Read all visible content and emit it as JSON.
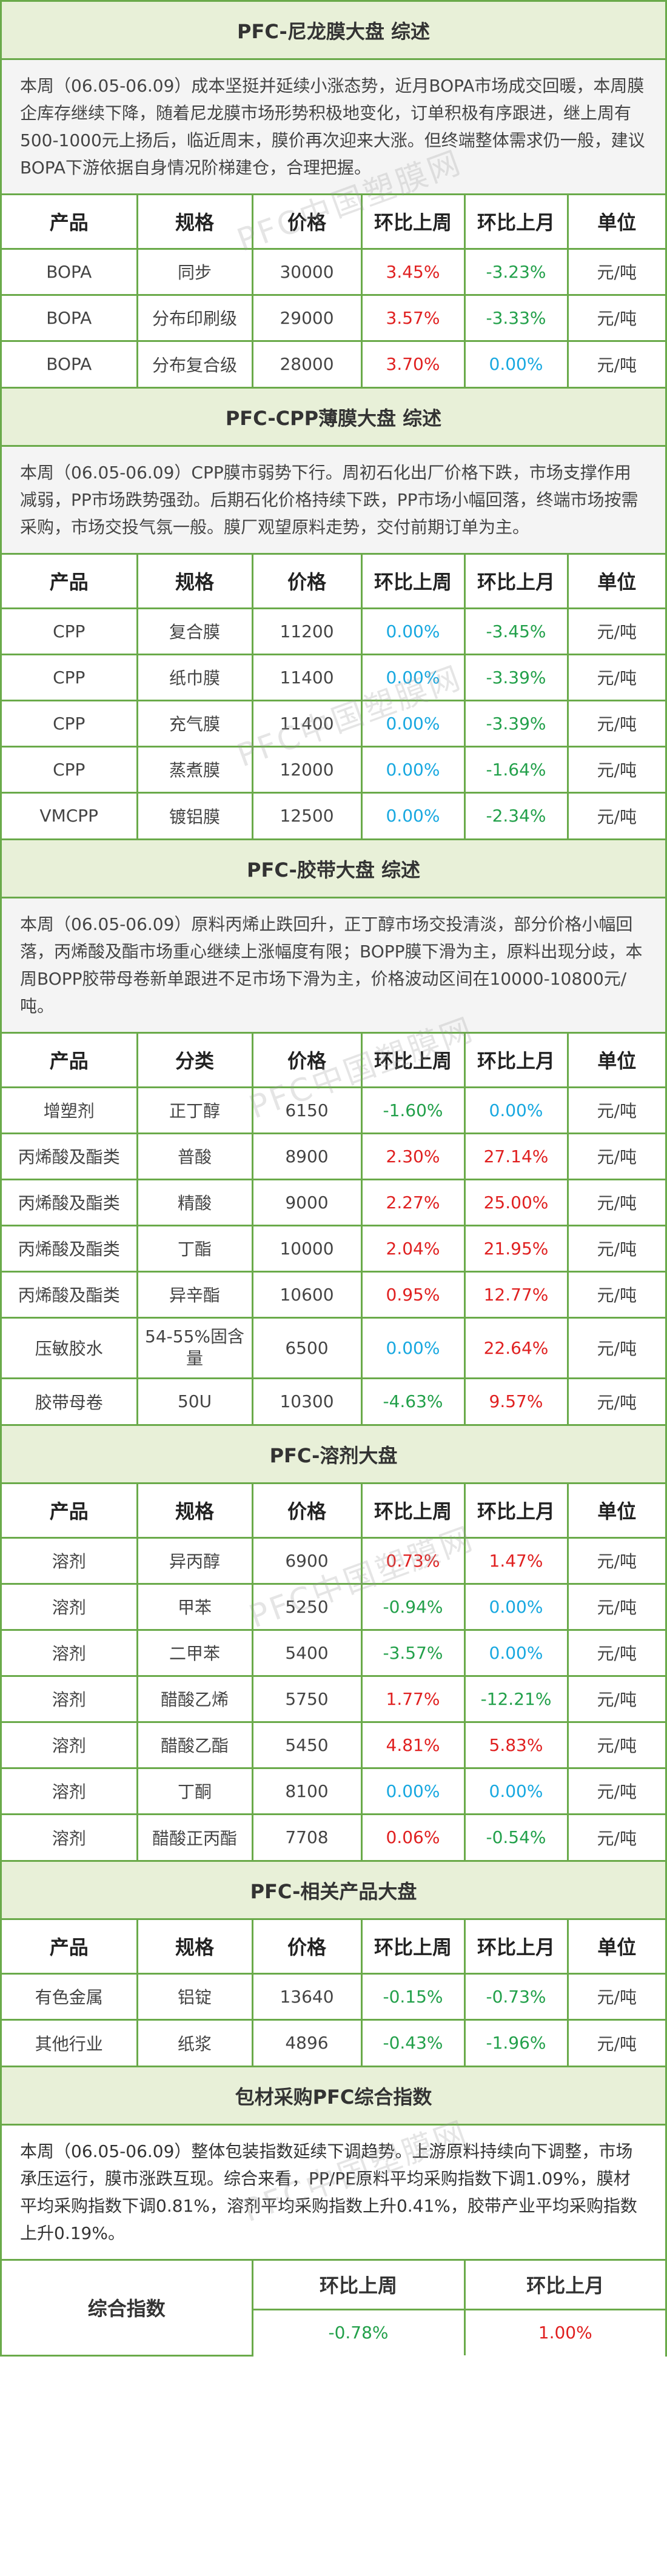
{
  "nylon": {
    "title": "PFC-尼龙膜大盘 综述",
    "summary": "本周（06.05-06.09）成本坚挺并延续小涨态势，近月BOPA市场成交回暖，本周膜企库存继续下降，随着尼龙膜市场形势积极地变化，订单积极有序跟进，继上周有500-1000元上扬后，临近周末，膜价再次迎来大涨。但终端整体需求仍一般，建议BOPA下游依据自身情况阶梯建仓，合理把握。",
    "headers": [
      "产品",
      "规格",
      "价格",
      "环比上周",
      "环比上月",
      "单位"
    ],
    "rows": [
      {
        "product": "BOPA",
        "spec": "同步",
        "price": "30000",
        "wow": "3.45%",
        "mom": "-3.23%",
        "unit": "元/吨",
        "wow_c": "red",
        "mom_c": "green"
      },
      {
        "product": "BOPA",
        "spec": "分布印刷级",
        "price": "29000",
        "wow": "3.57%",
        "mom": "-3.33%",
        "unit": "元/吨",
        "wow_c": "red",
        "mom_c": "green"
      },
      {
        "product": "BOPA",
        "spec": "分布复合级",
        "price": "28000",
        "wow": "3.70%",
        "mom": "0.00%",
        "unit": "元/吨",
        "wow_c": "red",
        "mom_c": "blue"
      }
    ]
  },
  "cpp": {
    "title": "PFC-CPP薄膜大盘 综述",
    "summary": "本周（06.05-06.09）CPP膜市弱势下行。周初石化出厂价格下跌，市场支撑作用减弱，PP市场跌势强劲。后期石化价格持续下跌，PP市场小幅回落，终端市场按需采购，市场交投气氛一般。膜厂观望原料走势，交付前期订单为主。",
    "headers": [
      "产品",
      "规格",
      "价格",
      "环比上周",
      "环比上月",
      "单位"
    ],
    "rows": [
      {
        "product": "CPP",
        "spec": "复合膜",
        "price": "11200",
        "wow": "0.00%",
        "mom": "-3.45%",
        "unit": "元/吨",
        "wow_c": "blue",
        "mom_c": "green"
      },
      {
        "product": "CPP",
        "spec": "纸巾膜",
        "price": "11400",
        "wow": "0.00%",
        "mom": "-3.39%",
        "unit": "元/吨",
        "wow_c": "blue",
        "mom_c": "green"
      },
      {
        "product": "CPP",
        "spec": "充气膜",
        "price": "11400",
        "wow": "0.00%",
        "mom": "-3.39%",
        "unit": "元/吨",
        "wow_c": "blue",
        "mom_c": "green"
      },
      {
        "product": "CPP",
        "spec": "蒸煮膜",
        "price": "12000",
        "wow": "0.00%",
        "mom": "-1.64%",
        "unit": "元/吨",
        "wow_c": "blue",
        "mom_c": "green"
      },
      {
        "product": "VMCPP",
        "spec": "镀铝膜",
        "price": "12500",
        "wow": "0.00%",
        "mom": "-2.34%",
        "unit": "元/吨",
        "wow_c": "blue",
        "mom_c": "green"
      }
    ]
  },
  "tape": {
    "title": "PFC-胶带大盘 综述",
    "summary": "本周（06.05-06.09）原料丙烯止跌回升，正丁醇市场交投清淡，部分价格小幅回落，丙烯酸及酯市场重心继续上涨幅度有限；BOPP膜下滑为主，原料出现分歧，本周BOPP胶带母卷新单跟进不足市场下滑为主，价格波动区间在10000-10800元/吨。",
    "headers": [
      "产品",
      "分类",
      "价格",
      "环比上周",
      "环比上月",
      "单位"
    ],
    "rows": [
      {
        "product": "增塑剂",
        "spec": "正丁醇",
        "price": "6150",
        "wow": "-1.60%",
        "mom": "0.00%",
        "unit": "元/吨",
        "wow_c": "green",
        "mom_c": "blue"
      },
      {
        "product": "丙烯酸及酯类",
        "spec": "普酸",
        "price": "8900",
        "wow": "2.30%",
        "mom": "27.14%",
        "unit": "元/吨",
        "wow_c": "red",
        "mom_c": "red"
      },
      {
        "product": "丙烯酸及酯类",
        "spec": "精酸",
        "price": "9000",
        "wow": "2.27%",
        "mom": "25.00%",
        "unit": "元/吨",
        "wow_c": "red",
        "mom_c": "red"
      },
      {
        "product": "丙烯酸及酯类",
        "spec": "丁酯",
        "price": "10000",
        "wow": "2.04%",
        "mom": "21.95%",
        "unit": "元/吨",
        "wow_c": "red",
        "mom_c": "red"
      },
      {
        "product": "丙烯酸及酯类",
        "spec": "异辛酯",
        "price": "10600",
        "wow": "0.95%",
        "mom": "12.77%",
        "unit": "元/吨",
        "wow_c": "red",
        "mom_c": "red"
      },
      {
        "product": "压敏胶水",
        "spec": "54-55%固含量",
        "price": "6500",
        "wow": "0.00%",
        "mom": "22.64%",
        "unit": "元/吨",
        "wow_c": "blue",
        "mom_c": "red",
        "tall": true
      },
      {
        "product": "胶带母卷",
        "spec": "50U",
        "price": "10300",
        "wow": "-4.63%",
        "mom": "9.57%",
        "unit": "元/吨",
        "wow_c": "green",
        "mom_c": "red"
      }
    ]
  },
  "solvent": {
    "title": "PFC-溶剂大盘",
    "headers": [
      "产品",
      "规格",
      "价格",
      "环比上周",
      "环比上月",
      "单位"
    ],
    "rows": [
      {
        "product": "溶剂",
        "spec": "异丙醇",
        "price": "6900",
        "wow": "0.73%",
        "mom": "1.47%",
        "unit": "元/吨",
        "wow_c": "red",
        "mom_c": "red"
      },
      {
        "product": "溶剂",
        "spec": "甲苯",
        "price": "5250",
        "wow": "-0.94%",
        "mom": "0.00%",
        "unit": "元/吨",
        "wow_c": "green",
        "mom_c": "blue"
      },
      {
        "product": "溶剂",
        "spec": "二甲苯",
        "price": "5400",
        "wow": "-3.57%",
        "mom": "0.00%",
        "unit": "元/吨",
        "wow_c": "green",
        "mom_c": "blue"
      },
      {
        "product": "溶剂",
        "spec": "醋酸乙烯",
        "price": "5750",
        "wow": "1.77%",
        "mom": "-12.21%",
        "unit": "元/吨",
        "wow_c": "red",
        "mom_c": "green"
      },
      {
        "product": "溶剂",
        "spec": "醋酸乙酯",
        "price": "5450",
        "wow": "4.81%",
        "mom": "5.83%",
        "unit": "元/吨",
        "wow_c": "red",
        "mom_c": "red"
      },
      {
        "product": "溶剂",
        "spec": "丁酮",
        "price": "8100",
        "wow": "0.00%",
        "mom": "0.00%",
        "unit": "元/吨",
        "wow_c": "blue",
        "mom_c": "blue"
      },
      {
        "product": "溶剂",
        "spec": "醋酸正丙酯",
        "price": "7708",
        "wow": "0.06%",
        "mom": "-0.54%",
        "unit": "元/吨",
        "wow_c": "red",
        "mom_c": "green"
      }
    ]
  },
  "related": {
    "title": "PFC-相关产品大盘",
    "headers": [
      "产品",
      "规格",
      "价格",
      "环比上周",
      "环比上月",
      "单位"
    ],
    "rows": [
      {
        "product": "有色金属",
        "spec": "铝锭",
        "price": "13640",
        "wow": "-0.15%",
        "mom": "-0.73%",
        "unit": "元/吨",
        "wow_c": "green",
        "mom_c": "green"
      },
      {
        "product": "其他行业",
        "spec": "纸浆",
        "price": "4896",
        "wow": "-0.43%",
        "mom": "-1.96%",
        "unit": "元/吨",
        "wow_c": "green",
        "mom_c": "green"
      }
    ]
  },
  "index": {
    "title": "包材采购PFC综合指数",
    "summary": "本周（06.05-06.09）整体包装指数延续下调趋势。上游原料持续向下调整，市场承压运行，膜市涨跌互现。综合来看，PP/PE原料平均采购指数下调1.09%，膜材平均采购指数下调0.81%，溶剂平均采购指数上升0.41%，胶带产业平均采购指数上升0.19%。",
    "label": "综合指数",
    "wow_label": "环比上周",
    "mom_label": "环比上月",
    "wow": "-0.78%",
    "mom": "1.00%"
  },
  "watermark": "PFC中国塑膜网",
  "colors": {
    "border": "#6aaa4a",
    "title_bg": "#e8f0d8",
    "up": "#e02020",
    "down": "#22a04a",
    "flat": "#18a8e0"
  }
}
